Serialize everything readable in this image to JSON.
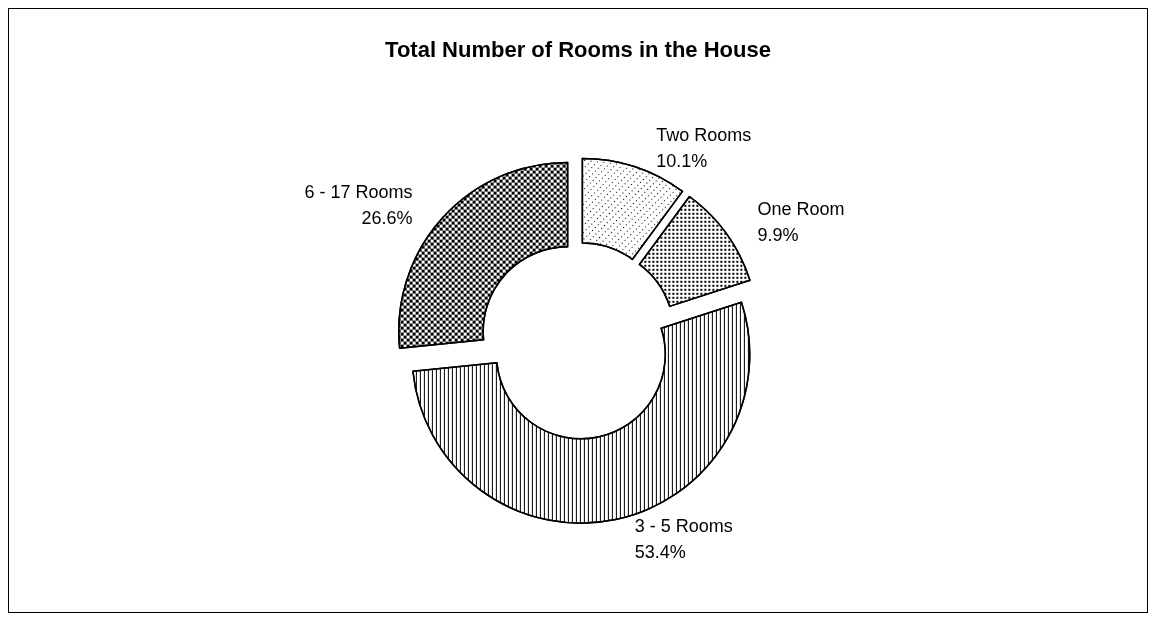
{
  "chart_data": {
    "type": "donut",
    "title": "Total Number of Rooms in the House",
    "categories": [
      "Two Rooms",
      "One Room",
      "3 - 5 Rooms",
      "6 - 17 Rooms"
    ],
    "values": [
      10.1,
      9.9,
      53.4,
      26.6
    ],
    "value_labels": [
      "10.1%",
      "9.9%",
      "53.4%",
      "26.6%"
    ],
    "colors": [
      "#ffffff",
      "#ffffff",
      "#ffffff",
      "#ffffff"
    ],
    "legend": false
  }
}
